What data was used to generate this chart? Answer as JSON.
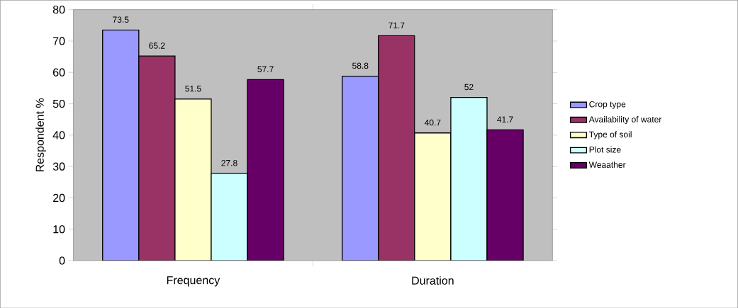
{
  "chart_data": {
    "type": "bar",
    "ylabel": "Respondent %",
    "categories": [
      "Frequency",
      "Duration"
    ],
    "series": [
      {
        "name": "Crop type",
        "color": "#9999ff",
        "values": [
          73.5,
          58.8
        ]
      },
      {
        "name": "Availability of water",
        "color": "#993366",
        "values": [
          65.2,
          71.7
        ]
      },
      {
        "name": "Type of soil",
        "color": "#ffffcc",
        "values": [
          51.5,
          40.7
        ]
      },
      {
        "name": "Plot size",
        "color": "#ccffff",
        "values": [
          27.8,
          52
        ]
      },
      {
        "name": "Weaather",
        "color": "#660066",
        "values": [
          57.7,
          41.7
        ]
      }
    ],
    "ylim": [
      0,
      80
    ],
    "yticks": [
      0,
      10,
      20,
      30,
      40,
      50,
      60,
      70,
      80
    ],
    "data_labels": true,
    "legend": "right"
  }
}
